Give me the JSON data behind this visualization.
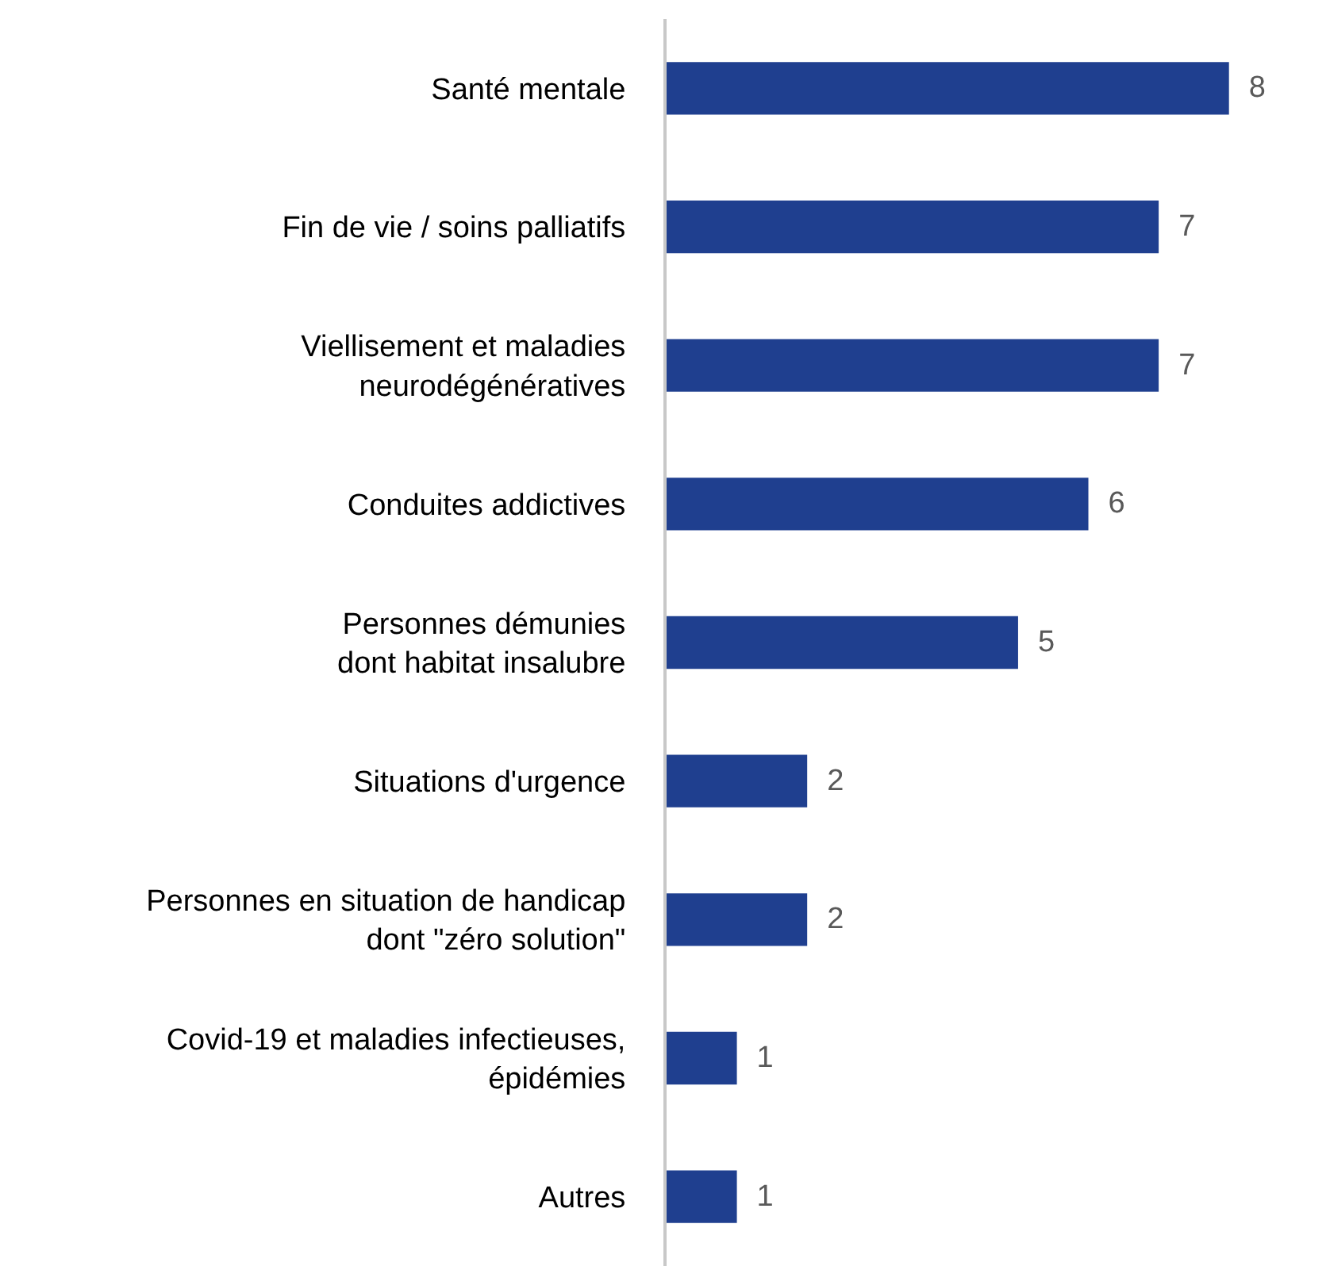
{
  "chart_data": {
    "type": "bar",
    "orientation": "horizontal",
    "categories": [
      "Santé mentale",
      "Fin de vie / soins palliatifs",
      "Viellisement et maladies\nneurodégénératives",
      "Conduites addictives",
      "Personnes démunies\ndont habitat insalubre",
      "Situations d'urgence",
      "Personnes en situation de handicap\ndont \"zéro solution\"",
      "Covid-19 et maladies infectieuses,\népidémies",
      "Autres"
    ],
    "values": [
      8,
      7,
      7,
      6,
      5,
      2,
      2,
      1,
      1
    ],
    "color": "#1f3f8f",
    "data_labels": true
  }
}
